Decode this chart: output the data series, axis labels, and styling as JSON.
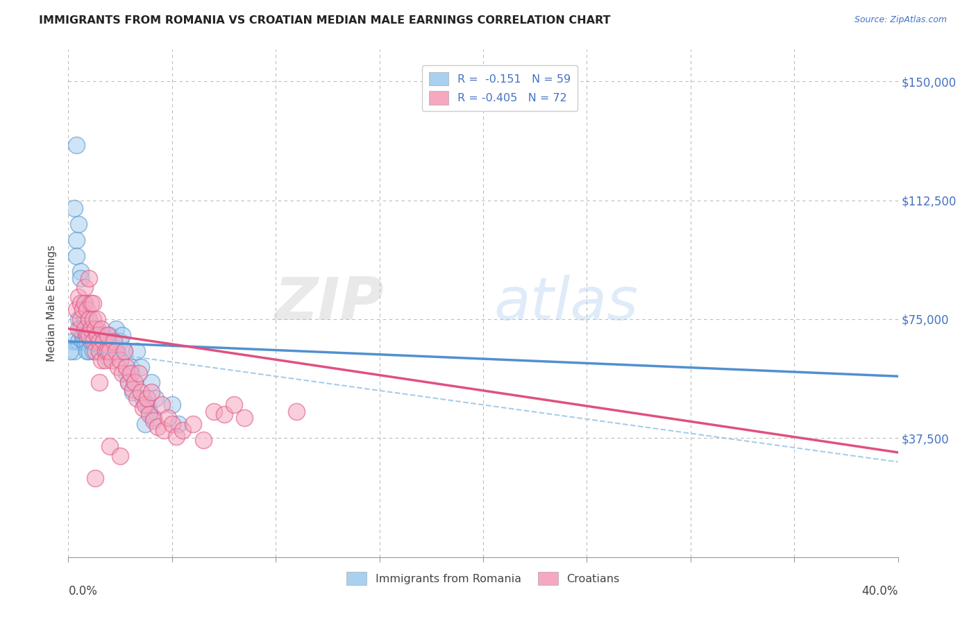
{
  "title": "IMMIGRANTS FROM ROMANIA VS CROATIAN MEDIAN MALE EARNINGS CORRELATION CHART",
  "source": "Source: ZipAtlas.com",
  "ylabel": "Median Male Earnings",
  "yticks": [
    0,
    37500,
    75000,
    112500,
    150000
  ],
  "ytick_labels": [
    "",
    "$37,500",
    "$75,000",
    "$112,500",
    "$150,000"
  ],
  "xlim": [
    0.0,
    0.4
  ],
  "ylim": [
    18000,
    160000
  ],
  "legend_romania_r": "R =  -0.151",
  "legend_romania_n": "N = 59",
  "legend_croatian_r": "R = -0.405",
  "legend_croatian_n": "N = 72",
  "color_romania": "#A8D0F0",
  "color_croatian": "#F5A8C0",
  "color_trendline_romania": "#5090D0",
  "color_trendline_croatian": "#E05080",
  "color_trendline_dashed": "#90C0E8",
  "color_text_blue": "#4472C4",
  "color_title": "#222222",
  "romania_scatter": [
    [
      0.002,
      68000
    ],
    [
      0.003,
      65000
    ],
    [
      0.004,
      130000
    ],
    [
      0.004,
      100000
    ],
    [
      0.004,
      95000
    ],
    [
      0.005,
      105000
    ],
    [
      0.005,
      75000
    ],
    [
      0.005,
      68000
    ],
    [
      0.006,
      90000
    ],
    [
      0.006,
      72000
    ],
    [
      0.007,
      70000
    ],
    [
      0.007,
      68000
    ],
    [
      0.008,
      80000
    ],
    [
      0.008,
      75000
    ],
    [
      0.008,
      68000
    ],
    [
      0.009,
      72000
    ],
    [
      0.009,
      68000
    ],
    [
      0.009,
      65000
    ],
    [
      0.01,
      75000
    ],
    [
      0.01,
      70000
    ],
    [
      0.01,
      65000
    ],
    [
      0.011,
      72000
    ],
    [
      0.011,
      68000
    ],
    [
      0.012,
      70000
    ],
    [
      0.012,
      65000
    ],
    [
      0.013,
      68000
    ],
    [
      0.014,
      72000
    ],
    [
      0.015,
      65000
    ],
    [
      0.016,
      70000
    ],
    [
      0.017,
      68000
    ],
    [
      0.018,
      65000
    ],
    [
      0.019,
      63000
    ],
    [
      0.02,
      70000
    ],
    [
      0.021,
      68000
    ],
    [
      0.022,
      65000
    ],
    [
      0.023,
      72000
    ],
    [
      0.024,
      64000
    ],
    [
      0.025,
      68000
    ],
    [
      0.026,
      70000
    ],
    [
      0.027,
      65000
    ],
    [
      0.028,
      58000
    ],
    [
      0.029,
      55000
    ],
    [
      0.03,
      60000
    ],
    [
      0.031,
      52000
    ],
    [
      0.032,
      55000
    ],
    [
      0.033,
      65000
    ],
    [
      0.035,
      60000
    ],
    [
      0.036,
      50000
    ],
    [
      0.037,
      42000
    ],
    [
      0.038,
      48000
    ],
    [
      0.039,
      46000
    ],
    [
      0.04,
      55000
    ],
    [
      0.041,
      44000
    ],
    [
      0.042,
      50000
    ],
    [
      0.05,
      48000
    ],
    [
      0.053,
      42000
    ],
    [
      0.003,
      110000
    ],
    [
      0.006,
      88000
    ],
    [
      0.001,
      65000
    ]
  ],
  "croatian_scatter": [
    [
      0.004,
      78000
    ],
    [
      0.005,
      82000
    ],
    [
      0.005,
      72000
    ],
    [
      0.006,
      80000
    ],
    [
      0.006,
      75000
    ],
    [
      0.007,
      78000
    ],
    [
      0.008,
      85000
    ],
    [
      0.008,
      80000
    ],
    [
      0.008,
      72000
    ],
    [
      0.009,
      78000
    ],
    [
      0.009,
      70000
    ],
    [
      0.01,
      88000
    ],
    [
      0.01,
      75000
    ],
    [
      0.01,
      70000
    ],
    [
      0.011,
      80000
    ],
    [
      0.011,
      72000
    ],
    [
      0.012,
      80000
    ],
    [
      0.012,
      75000
    ],
    [
      0.012,
      68000
    ],
    [
      0.013,
      72000
    ],
    [
      0.013,
      65000
    ],
    [
      0.013,
      25000
    ],
    [
      0.014,
      75000
    ],
    [
      0.014,
      70000
    ],
    [
      0.015,
      68000
    ],
    [
      0.015,
      55000
    ],
    [
      0.015,
      65000
    ],
    [
      0.016,
      72000
    ],
    [
      0.016,
      62000
    ],
    [
      0.017,
      68000
    ],
    [
      0.018,
      65000
    ],
    [
      0.018,
      62000
    ],
    [
      0.019,
      70000
    ],
    [
      0.019,
      65000
    ],
    [
      0.02,
      65000
    ],
    [
      0.02,
      35000
    ],
    [
      0.021,
      62000
    ],
    [
      0.022,
      68000
    ],
    [
      0.023,
      65000
    ],
    [
      0.024,
      60000
    ],
    [
      0.025,
      62000
    ],
    [
      0.025,
      32000
    ],
    [
      0.026,
      58000
    ],
    [
      0.027,
      65000
    ],
    [
      0.028,
      60000
    ],
    [
      0.029,
      55000
    ],
    [
      0.03,
      58000
    ],
    [
      0.031,
      53000
    ],
    [
      0.032,
      55000
    ],
    [
      0.033,
      50000
    ],
    [
      0.034,
      58000
    ],
    [
      0.035,
      52000
    ],
    [
      0.036,
      47000
    ],
    [
      0.037,
      48000
    ],
    [
      0.038,
      50000
    ],
    [
      0.039,
      45000
    ],
    [
      0.04,
      52000
    ],
    [
      0.041,
      43000
    ],
    [
      0.043,
      41000
    ],
    [
      0.045,
      48000
    ],
    [
      0.046,
      40000
    ],
    [
      0.048,
      44000
    ],
    [
      0.05,
      42000
    ],
    [
      0.052,
      38000
    ],
    [
      0.055,
      40000
    ],
    [
      0.06,
      42000
    ],
    [
      0.065,
      37000
    ],
    [
      0.07,
      46000
    ],
    [
      0.075,
      45000
    ],
    [
      0.08,
      48000
    ],
    [
      0.085,
      44000
    ],
    [
      0.11,
      46000
    ]
  ]
}
